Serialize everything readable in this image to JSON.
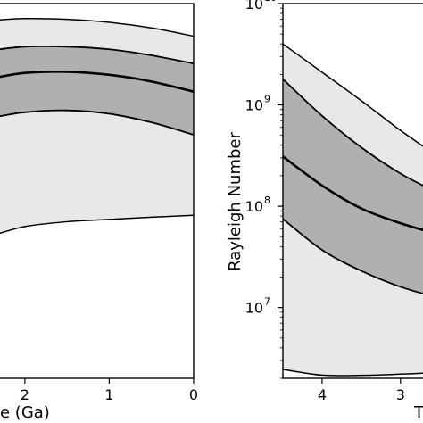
{
  "colors": {
    "outer_band": "#e8e8e8",
    "inner_band": "#b0b0b0",
    "line": "#000000",
    "background": "#ffffff"
  },
  "chart_data": [
    {
      "type": "area",
      "title": "",
      "xlabel": "Time (Ga)",
      "xlabel_visible": "e (Ga)",
      "ylabel": "",
      "x_reversed": true,
      "xlim": [
        2.4,
        0
      ],
      "ylim": [
        0,
        1
      ],
      "xticks": [
        2,
        1,
        0
      ],
      "xtick_labels": [
        "2",
        "1",
        "0"
      ],
      "grid": false,
      "x": [
        2.4,
        2.0,
        1.5,
        1.0,
        0.5,
        0.0
      ],
      "series": [
        {
          "role": "outer_upper",
          "values": [
            0.955,
            0.96,
            0.958,
            0.95,
            0.935,
            0.913
          ]
        },
        {
          "role": "inner_upper",
          "values": [
            0.875,
            0.885,
            0.885,
            0.878,
            0.862,
            0.84
          ]
        },
        {
          "role": "median",
          "values": [
            0.8,
            0.815,
            0.818,
            0.81,
            0.792,
            0.765
          ]
        },
        {
          "role": "inner_lower",
          "values": [
            0.695,
            0.71,
            0.715,
            0.706,
            0.683,
            0.65
          ]
        },
        {
          "role": "outer_lower",
          "values": [
            0.38,
            0.405,
            0.418,
            0.424,
            0.43,
            0.435
          ]
        }
      ]
    },
    {
      "type": "area",
      "title": "",
      "xlabel": "",
      "ylabel": "Rayleigh Number",
      "x_reversed": true,
      "xlim": [
        4.5,
        2.6
      ],
      "ylim": [
        2000000,
        10000000000
      ],
      "y_scale": "log",
      "xticks": [
        4,
        3
      ],
      "xtick_labels": [
        "4",
        "3"
      ],
      "yticks": [
        10000000,
        100000000,
        1000000000,
        10000000000
      ],
      "ytick_labels": [
        "10",
        "10",
        "10",
        "10"
      ],
      "ytick_exponents": [
        "7",
        "8",
        "9",
        "10"
      ],
      "xlabel_fragment": "T",
      "grid": false,
      "x": [
        4.5,
        4.0,
        3.5,
        3.0,
        2.6
      ],
      "series": [
        {
          "role": "outer_upper",
          "values": [
            4000000000,
            2100000000,
            1100000000,
            560000000,
            340000000
          ]
        },
        {
          "role": "inner_upper",
          "values": [
            1800000000,
            780000000,
            380000000,
            210000000,
            145000000
          ]
        },
        {
          "role": "median",
          "values": [
            310000000,
            160000000,
            95000000,
            68000000,
            55000000
          ]
        },
        {
          "role": "inner_lower",
          "values": [
            75000000,
            37000000,
            23000000,
            16000000,
            13000000
          ]
        },
        {
          "role": "outer_lower",
          "values": [
            2450000,
            2150000,
            2140000,
            2200000,
            2270000
          ]
        }
      ]
    }
  ]
}
